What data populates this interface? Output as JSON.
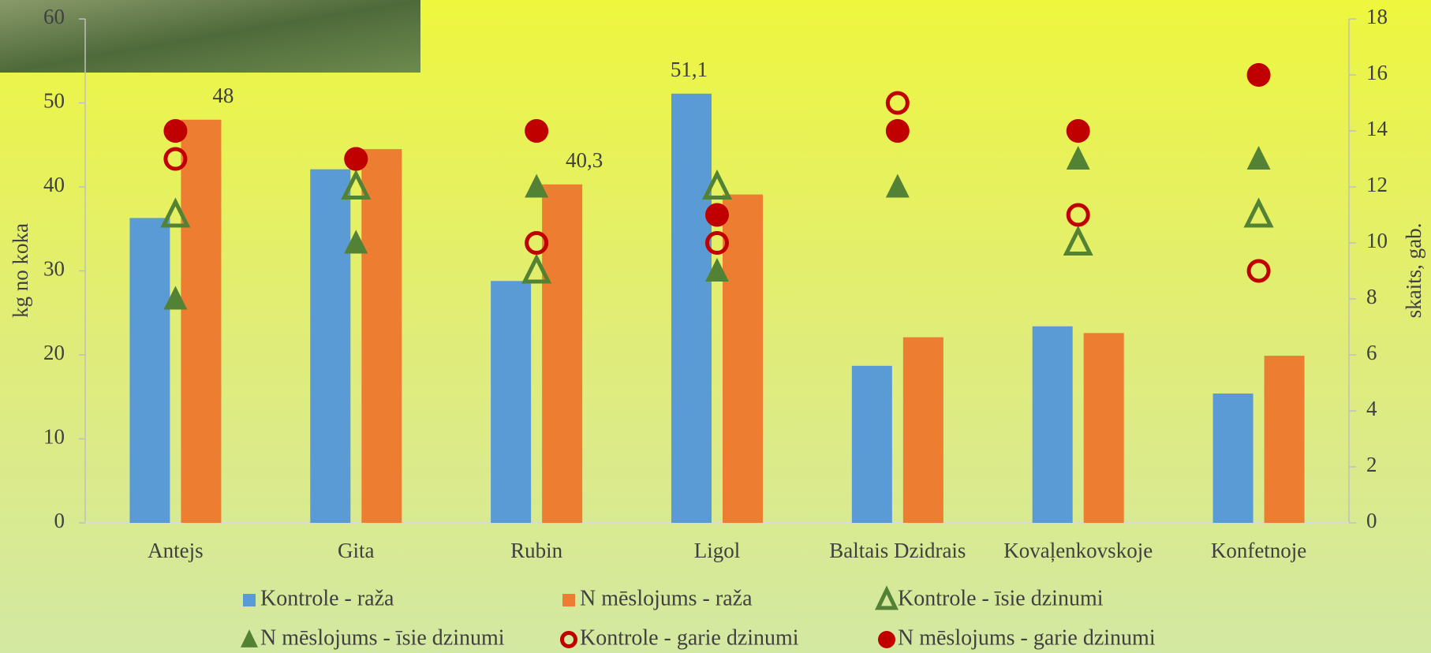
{
  "chart_data": {
    "type": "combo",
    "categories": [
      "Antejs",
      "Gita",
      "Rubin",
      "Ligol",
      "Baltais Dzidrais",
      "Kovaļenkovskoje",
      "Konfetnoje"
    ],
    "y_label": "kg no koka",
    "y2_label": "skaits, gab.",
    "ylim": [
      0,
      60
    ],
    "yticks": [
      0,
      10,
      20,
      30,
      40,
      50,
      60
    ],
    "y2lim": [
      0,
      18
    ],
    "y2ticks": [
      0,
      2,
      4,
      6,
      8,
      10,
      12,
      14,
      16,
      18
    ],
    "series": [
      {
        "name": "Kontrole - raža",
        "type": "bar",
        "color": "#5b9bd5",
        "values": [
          36.3,
          42.1,
          28.8,
          51.1,
          18.7,
          23.4,
          15.4
        ],
        "value_labels": [
          null,
          null,
          null,
          "51,1",
          null,
          null,
          null
        ]
      },
      {
        "name": "N mēslojums - raža",
        "type": "bar",
        "color": "#ed7d31",
        "values": [
          48,
          44.5,
          40.3,
          39.1,
          22.1,
          22.6,
          19.9
        ],
        "value_labels": [
          "48",
          null,
          "40,3",
          null,
          null,
          null,
          null
        ]
      },
      {
        "name": "Kontrole - īsie dzinumi",
        "type": "scatter",
        "marker": "triangle",
        "filled": false,
        "axis": "y2",
        "color": "#548235",
        "values": [
          11,
          12,
          9,
          12,
          null,
          10,
          11
        ]
      },
      {
        "name": "N mēslojums - īsie dzinumi",
        "type": "scatter",
        "marker": "triangle",
        "filled": true,
        "axis": "y2",
        "color": "#548235",
        "values": [
          8,
          10,
          12,
          9,
          12,
          13,
          13
        ]
      },
      {
        "name": "Kontrole - garie dzinumi",
        "type": "scatter",
        "marker": "circle",
        "filled": false,
        "axis": "y2",
        "color": "#c00000",
        "values": [
          13,
          13,
          10,
          10,
          15,
          11,
          9
        ]
      },
      {
        "name": "N mēslojums - garie dzinumi",
        "type": "scatter",
        "marker": "circle",
        "filled": true,
        "axis": "y2",
        "color": "#c00000",
        "values": [
          14,
          13,
          14,
          11,
          14,
          14,
          16
        ]
      }
    ]
  }
}
